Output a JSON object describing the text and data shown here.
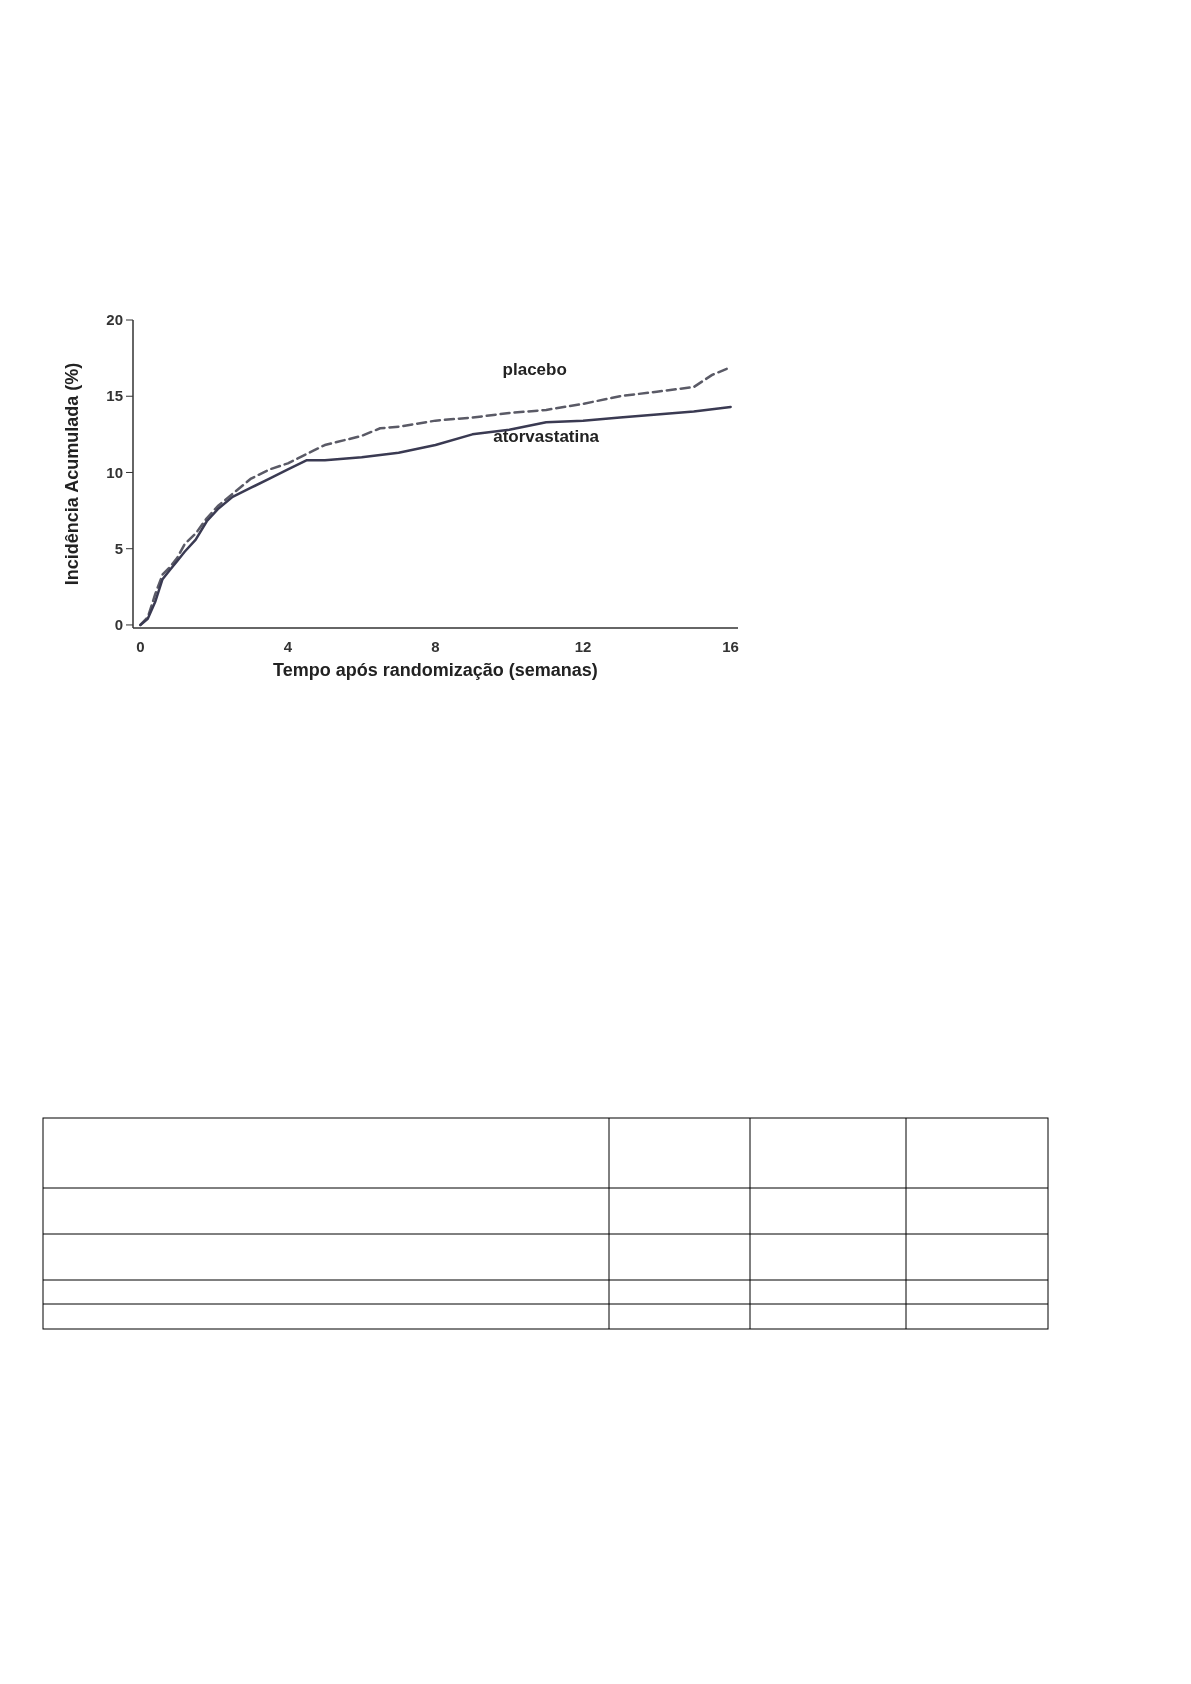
{
  "chart_data": {
    "type": "line",
    "xlabel": "Tempo após randomização (semanas)",
    "ylabel": "Incidência Acumulada (%)",
    "xlim": [
      -0.2,
      16.2
    ],
    "ylim": [
      -0.2,
      20
    ],
    "xticks": [
      0,
      4,
      8,
      12,
      16
    ],
    "yticks": [
      0,
      5,
      10,
      15,
      20
    ],
    "grid": false,
    "marker": "none",
    "series": [
      {
        "name": "placebo",
        "color": "#5a5a66",
        "line_style": "dashed",
        "x": [
          0,
          0.2,
          0.4,
          0.6,
          0.8,
          1.0,
          1.2,
          1.5,
          1.8,
          2.1,
          2.5,
          3,
          3.5,
          4,
          4.5,
          5,
          6,
          6.5,
          7,
          8,
          9,
          10,
          11,
          12,
          13,
          14,
          15,
          15.5,
          16
        ],
        "values": [
          0,
          0.5,
          2,
          3.3,
          3.8,
          4.4,
          5.3,
          6,
          7,
          7.8,
          8.6,
          9.6,
          10.2,
          10.6,
          11.2,
          11.8,
          12.4,
          12.9,
          13,
          13.4,
          13.6,
          13.9,
          14.1,
          14.5,
          15,
          15.3,
          15.6,
          16.4,
          16.9
        ]
      },
      {
        "name": "atorvastatina",
        "color": "#3a3a52",
        "line_style": "solid",
        "x": [
          0,
          0.2,
          0.4,
          0.6,
          0.8,
          1.0,
          1.2,
          1.5,
          1.8,
          2.1,
          2.5,
          3,
          3.5,
          4,
          4.5,
          5,
          6,
          7,
          8,
          9,
          10,
          11,
          12,
          13,
          14,
          15,
          16
        ],
        "values": [
          0,
          0.4,
          1.5,
          3,
          3.6,
          4.2,
          4.8,
          5.6,
          6.8,
          7.6,
          8.4,
          9,
          9.6,
          10.2,
          10.8,
          10.8,
          11,
          11.3,
          11.8,
          12.5,
          12.8,
          13.3,
          13.4,
          13.6,
          13.8,
          14,
          14.3
        ]
      }
    ]
  }
}
